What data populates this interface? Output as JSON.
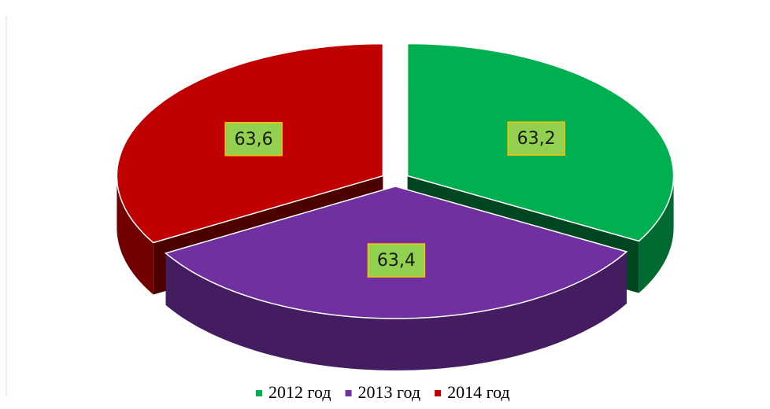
{
  "chart_data": {
    "type": "pie",
    "categories": [
      "2012 год",
      "2013 год",
      "2014 год"
    ],
    "values": [
      63.2,
      63.4,
      63.6
    ],
    "value_labels": [
      "63,2",
      "63,4",
      "63,6"
    ],
    "colors": [
      "#00b050",
      "#7030a0",
      "#c00000"
    ],
    "legend": "bottom"
  }
}
